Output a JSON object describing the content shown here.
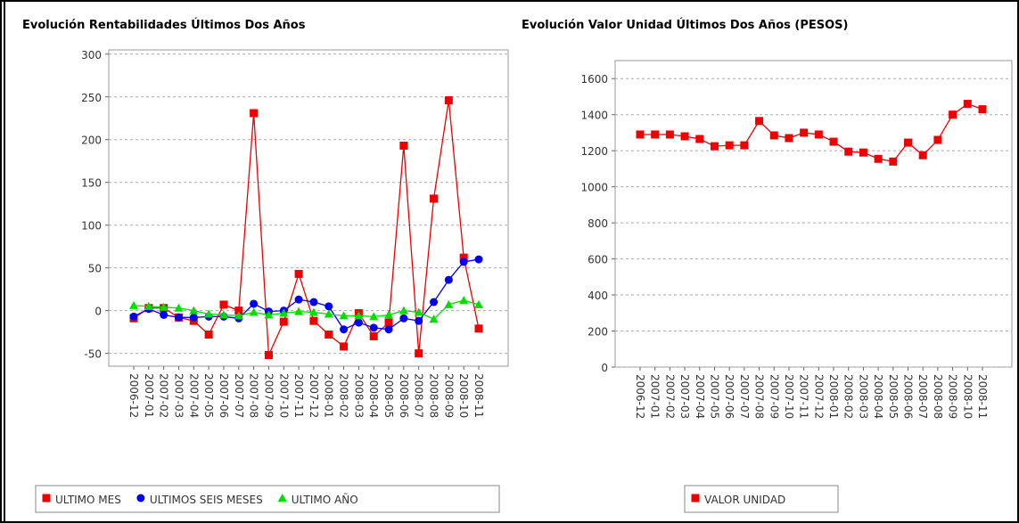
{
  "chart_data": [
    {
      "type": "line",
      "title": "Evolución Rentabilidades Últimos Dos Años",
      "categories": [
        "2006-12",
        "2007-01",
        "2007-02",
        "2007-03",
        "2007-04",
        "2007-05",
        "2007-06",
        "2007-07",
        "2007-08",
        "2007-09",
        "2007-10",
        "2007-11",
        "2007-12",
        "2008-01",
        "2008-02",
        "2008-03",
        "2008-04",
        "2008-05",
        "2008-06",
        "2008-07",
        "2008-08",
        "2008-09",
        "2008-10",
        "2008-11"
      ],
      "series": [
        {
          "name": "ULTIMO MES",
          "color": "#ee0000",
          "marker": "square",
          "values": [
            -9,
            3,
            3,
            -8,
            -12,
            -28,
            7,
            0,
            231,
            -52,
            -13,
            43,
            -12,
            -28,
            -42,
            -3,
            -30,
            -14,
            193,
            -50,
            131,
            246,
            62,
            -21
          ]
        },
        {
          "name": "ULTIMOS SEIS MESES",
          "color": "#0000ee",
          "marker": "circle",
          "values": [
            -7,
            2,
            -5,
            -8,
            -8,
            -7,
            -7,
            -9,
            8,
            -1,
            0,
            13,
            10,
            5,
            -22,
            -14,
            -20,
            -22,
            -9,
            -12,
            10,
            36,
            57,
            60
          ]
        },
        {
          "name": "ULTIMO AÑO",
          "color": "#00dd00",
          "marker": "triangle",
          "values": [
            6,
            5,
            4,
            3,
            0,
            -4,
            -5,
            -6,
            -2,
            -5,
            -3,
            -1,
            -2,
            -4,
            -6,
            -6,
            -7,
            -5,
            0,
            -2,
            -10,
            7,
            12,
            7
          ]
        }
      ],
      "ylim": [
        -65,
        305
      ],
      "yticks": [
        -50,
        0,
        50,
        100,
        150,
        200,
        250,
        300
      ],
      "grid": true
    },
    {
      "type": "line",
      "title": "Evolución Valor Unidad Últimos Dos Años (PESOS)",
      "categories": [
        "2006-12",
        "2007-01",
        "2007-02",
        "2007-03",
        "2007-04",
        "2007-05",
        "2007-06",
        "2007-07",
        "2007-08",
        "2007-09",
        "2007-10",
        "2007-11",
        "2007-12",
        "2008-01",
        "2008-02",
        "2008-03",
        "2008-04",
        "2008-05",
        "2008-06",
        "2008-07",
        "2008-08",
        "2008-09",
        "2008-10",
        "2008-11"
      ],
      "series": [
        {
          "name": "VALOR UNIDAD",
          "color": "#ee0000",
          "marker": "square",
          "values": [
            1290,
            1290,
            1290,
            1280,
            1265,
            1225,
            1230,
            1230,
            1365,
            1285,
            1270,
            1300,
            1290,
            1250,
            1195,
            1190,
            1155,
            1140,
            1245,
            1175,
            1260,
            1400,
            1460,
            1430
          ]
        }
      ],
      "ylim": [
        0,
        1700
      ],
      "yticks": [
        0,
        200,
        400,
        600,
        800,
        1000,
        1200,
        1400,
        1600
      ],
      "grid": true
    }
  ]
}
